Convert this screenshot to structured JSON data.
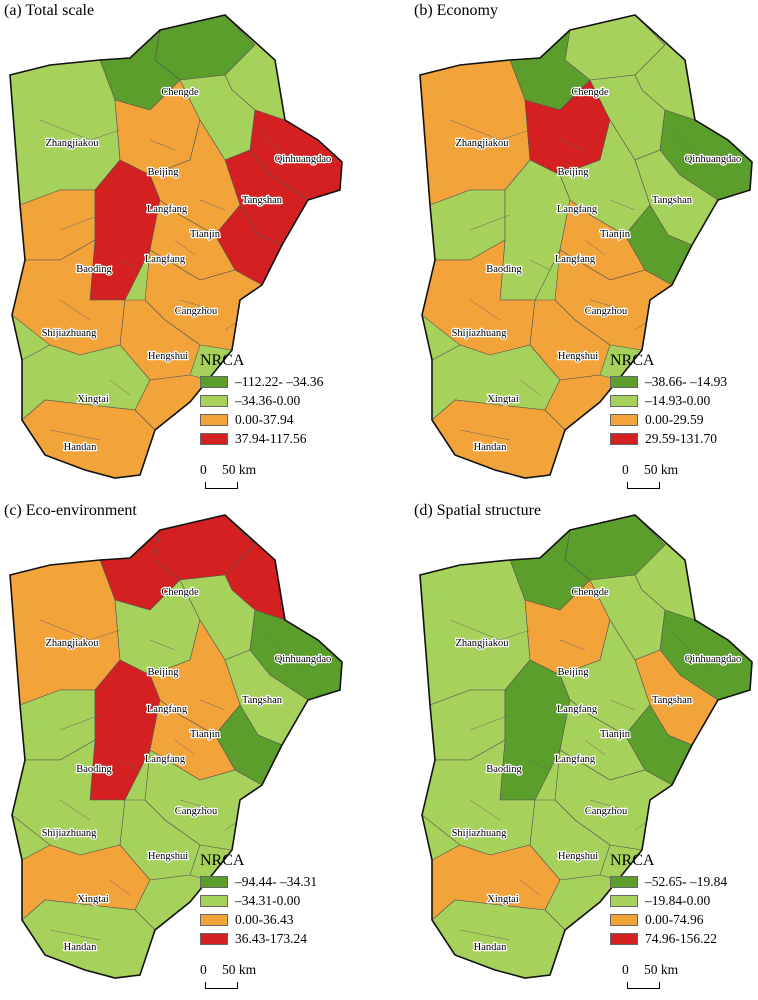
{
  "panels": [
    {
      "title": "(a) Total scale",
      "legend": {
        "title": "NRCA",
        "items": [
          {
            "label": "–112.22- –34.36",
            "color": "#5c9e2b"
          },
          {
            "label": "–34.36-0.00",
            "color": "#a6d15a"
          },
          {
            "label": "0.00-37.94",
            "color": "#f2a33a"
          },
          {
            "label": "37.94-117.56",
            "color": "#d42020"
          }
        ]
      },
      "fills": [
        "#5c9e2b",
        "#5c9e2b",
        "#a6d15a",
        "#a6d15a",
        "#f2a33a",
        "#a6d15a",
        "#d42020",
        "#d42020",
        "#f2a33a",
        "#d42020",
        "#f2a33a",
        "#d42020",
        "#f2a33a",
        "#f2a33a",
        "#f2a33a",
        "#f2a33a",
        "#a6d15a",
        "#f2a33a",
        "#f2a33a"
      ]
    },
    {
      "title": "(b) Economy",
      "legend": {
        "title": "NRCA",
        "items": [
          {
            "label": "–38.66- –14.93",
            "color": "#5c9e2b"
          },
          {
            "label": "–14.93-0.00",
            "color": "#a6d15a"
          },
          {
            "label": "0.00-29.59",
            "color": "#f2a33a"
          },
          {
            "label": "29.59-131.70",
            "color": "#d42020"
          }
        ]
      },
      "fills": [
        "#a6d15a",
        "#5c9e2b",
        "#a6d15a",
        "#f2a33a",
        "#d42020",
        "#a6d15a",
        "#5c9e2b",
        "#a6d15a",
        "#a6d15a",
        "#5c9e2b",
        "#a6d15a",
        "#a6d15a",
        "#f2a33a",
        "#f2a33a",
        "#f2a33a",
        "#f2a33a",
        "#a6d15a",
        "#f2a33a",
        "#f2a33a"
      ]
    },
    {
      "title": "(c) Eco-environment",
      "legend": {
        "title": "NRCA",
        "items": [
          {
            "label": "–94.44- –34.31",
            "color": "#5c9e2b"
          },
          {
            "label": "–34.31-0.00",
            "color": "#a6d15a"
          },
          {
            "label": "0.00-36.43",
            "color": "#f2a33a"
          },
          {
            "label": "36.43-173.24",
            "color": "#d42020"
          }
        ]
      },
      "fills": [
        "#d42020",
        "#d42020",
        "#d42020",
        "#f2a33a",
        "#a6d15a",
        "#a6d15a",
        "#5c9e2b",
        "#a6d15a",
        "#f2a33a",
        "#5c9e2b",
        "#a6d15a",
        "#d42020",
        "#f2a33a",
        "#a6d15a",
        "#a6d15a",
        "#a6d15a",
        "#f2a33a",
        "#a6d15a",
        "#a6d15a"
      ]
    },
    {
      "title": "(d) Spatial structure",
      "legend": {
        "title": "NRCA",
        "items": [
          {
            "label": "–52.65- –19.84",
            "color": "#5c9e2b"
          },
          {
            "label": "–19.84-0.00",
            "color": "#a6d15a"
          },
          {
            "label": "0.00-74.96",
            "color": "#f2a33a"
          },
          {
            "label": "74.96-156.22",
            "color": "#d42020"
          }
        ]
      },
      "fills": [
        "#5c9e2b",
        "#5c9e2b",
        "#a6d15a",
        "#a6d15a",
        "#f2a33a",
        "#a6d15a",
        "#5c9e2b",
        "#f2a33a",
        "#a6d15a",
        "#5c9e2b",
        "#a6d15a",
        "#5c9e2b",
        "#a6d15a",
        "#a6d15a",
        "#a6d15a",
        "#a6d15a",
        "#f2a33a",
        "#a6d15a",
        "#a6d15a"
      ]
    }
  ],
  "cities": [
    "Chengde",
    "Zhangjiakou",
    "Beijing",
    "Qinhuangdao",
    "Langfang",
    "Tangshan",
    "Tianjin",
    "Langfang",
    "Baoding",
    "Cangzhou",
    "Shijiazhuang",
    "Hengshui",
    "Xingtai",
    "Handan"
  ],
  "scale": {
    "zero": "0",
    "distance": "50 km"
  }
}
